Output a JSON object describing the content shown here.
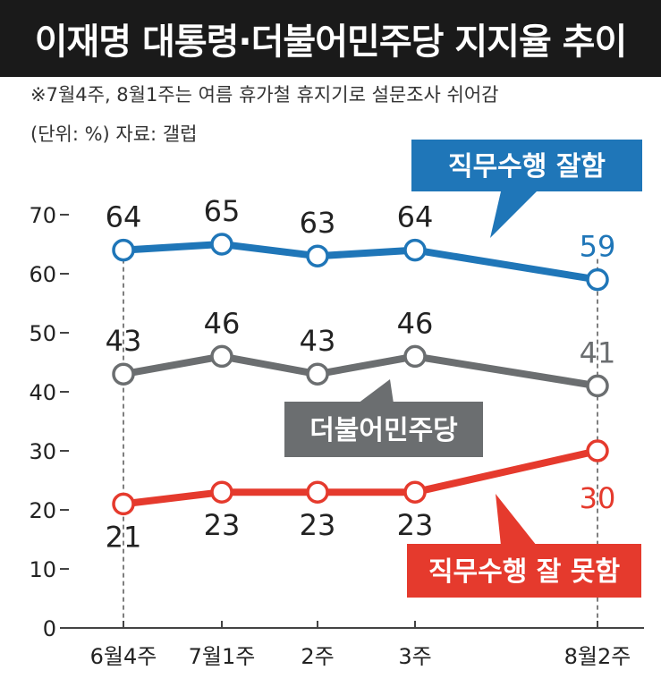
{
  "title": "이재명 대통령·더불어민주당 지지율 추이",
  "note": "※7월4주, 8월1주는 여름 휴가철 휴지기로 설문조사 쉬어감",
  "unit_source": "(단위: %) 자료: 갤럽",
  "chart_data": {
    "type": "line",
    "categories": [
      "6월4주",
      "7월1주",
      "2주",
      "3주",
      "8월2주"
    ],
    "y_ticks": [
      0,
      10,
      20,
      30,
      40,
      50,
      60,
      70
    ],
    "ylim": [
      0,
      70
    ],
    "series": [
      {
        "name": "직무수행 잘함",
        "values": [
          64,
          65,
          63,
          64,
          59
        ],
        "color": "#1f76b8"
      },
      {
        "name": "더불어민주당",
        "values": [
          43,
          46,
          43,
          46,
          41
        ],
        "color": "#6b6e70"
      },
      {
        "name": "직무수행 잘 못함",
        "values": [
          21,
          23,
          23,
          23,
          30
        ],
        "color": "#e53a2d"
      }
    ]
  }
}
